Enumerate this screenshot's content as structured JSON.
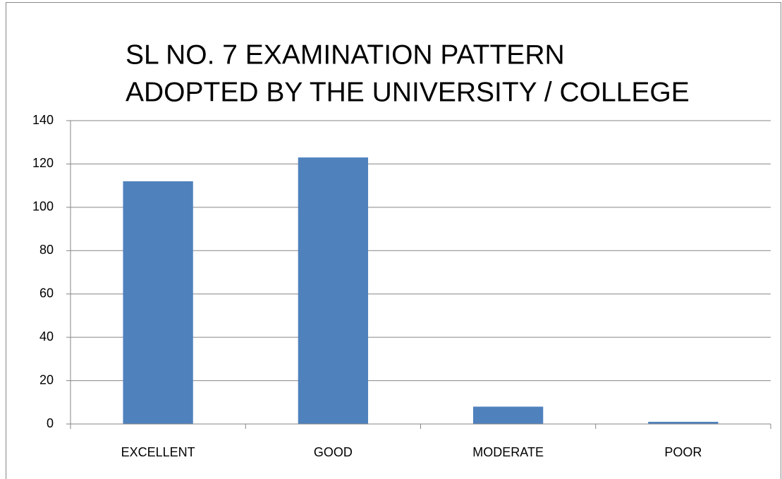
{
  "chart_data": {
    "type": "bar",
    "title": [
      "SL NO. 7 EXAMINATION PATTERN",
      "ADOPTED BY THE UNIVERSITY / COLLEGE"
    ],
    "categories": [
      "EXCELLENT",
      "GOOD",
      "MODERATE",
      "POOR"
    ],
    "values": [
      112,
      123,
      8,
      1
    ],
    "color": "#4f81bd",
    "ylim": [
      0,
      140
    ],
    "yticks": [
      0,
      20,
      40,
      60,
      80,
      100,
      120,
      140
    ],
    "grid": true
  }
}
